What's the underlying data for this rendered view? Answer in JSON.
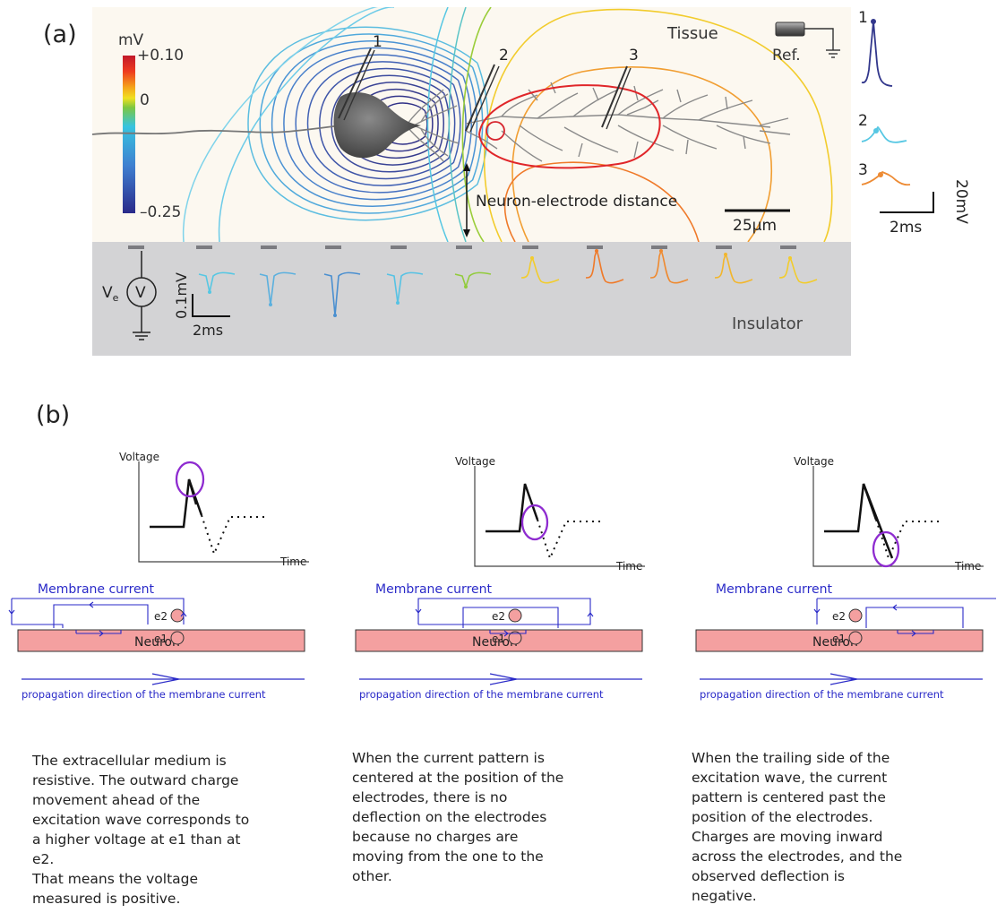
{
  "panel_a": {
    "label": "(a)",
    "colorbar": {
      "unit": "mV",
      "max": "+0.10",
      "zero": "0",
      "min": "–0.25"
    },
    "tissue_label": "Tissue",
    "ref_label": "Ref.",
    "electrode_labels": [
      "1",
      "2",
      "3"
    ],
    "distance_label": "Neuron-electrode distance",
    "scalebar_label": "25μm",
    "traces": {
      "labels": [
        "1",
        "2",
        "3"
      ],
      "time_scale": "2ms",
      "voltage_scale": "20mV"
    },
    "insulator": {
      "label": "Insulator",
      "ve_label": "V",
      "ve_sub": "e",
      "meter_symbol": "V",
      "voltage_scale": "0.1mV",
      "time_scale": "2ms"
    }
  },
  "panel_b": {
    "label": "(b)",
    "columns": [
      {
        "y_axis": "Voltage",
        "x_axis": "Time",
        "current_label": "Membrane current",
        "e2": "e2",
        "e1": "e1",
        "neuron": "Neuron",
        "propagation": "propagation direction of the membrane current",
        "description": "The extracellular medium is\nresistive. The outward charge\nmovement ahead of the\nexcitation wave corresponds to\na higher voltage at e1 than at\ne2.\nThat means the voltage\nmeasured is positive."
      },
      {
        "y_axis": "Voltage",
        "x_axis": "Time",
        "current_label": "Membrane current",
        "e2": "e2",
        "e1": "e1",
        "neuron": "Neuron",
        "propagation": "propagation direction of the membrane current",
        "description": "When the current pattern is\ncentered at the position of the\nelectrodes, there is no\ndeflection on the electrodes\nbecause no charges are\nmoving from the one to the\nother."
      },
      {
        "y_axis": "Voltage",
        "x_axis": "Time",
        "current_label": "Membrane current",
        "e2": "e2",
        "e1": "e1",
        "neuron": "Neuron",
        "propagation": "propagation direction of the membrane current",
        "description": "When the trailing side of the\nexcitation wave, the current\npattern is centered past the\nposition of the electrodes.\nCharges are moving inward\nacross the electrodes, and the\nobserved deflection is\nnegative."
      }
    ]
  }
}
